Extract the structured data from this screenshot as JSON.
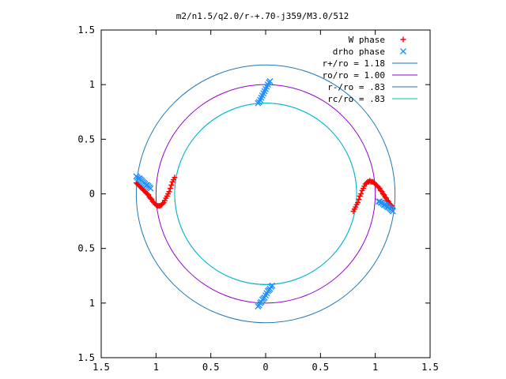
{
  "chart_data": {
    "type": "scatter",
    "title": "m2/n1.5/q2.0/r-+.70-j359/M3.0/512",
    "xlim": [
      -1.5,
      1.5
    ],
    "ylim": [
      -1.5,
      1.5
    ],
    "x_ticks": [
      {
        "value": -1.5,
        "label": "1.5"
      },
      {
        "value": -1.0,
        "label": "1"
      },
      {
        "value": -0.5,
        "label": "0.5"
      },
      {
        "value": 0.0,
        "label": "0"
      },
      {
        "value": 0.5,
        "label": "0.5"
      },
      {
        "value": 1.0,
        "label": "1"
      },
      {
        "value": 1.5,
        "label": "1.5"
      }
    ],
    "y_ticks": [
      {
        "value": 1.5,
        "label": "1.5"
      },
      {
        "value": 1.0,
        "label": "1"
      },
      {
        "value": 0.5,
        "label": "0.5"
      },
      {
        "value": 0.0,
        "label": "0"
      },
      {
        "value": -0.5,
        "label": "0.5"
      },
      {
        "value": -1.0,
        "label": "1"
      },
      {
        "value": -1.5,
        "label": "1.5"
      }
    ],
    "grid": false,
    "legend_position": "top-right",
    "circles": [
      {
        "name": "r+/ro = 1.18",
        "radius": 1.18,
        "color": "#1f77b4"
      },
      {
        "name": "ro/ro = 1.00",
        "radius": 1.0,
        "color": "#9400d3"
      },
      {
        "name": "r-/ro = .83",
        "radius": 0.83,
        "color": "#1f77b4"
      },
      {
        "name": "rc/ro = .83",
        "radius": 0.83,
        "color": "#00c0d0"
      }
    ],
    "series": [
      {
        "name": "W phase",
        "marker": "plus",
        "color": "#ff0000",
        "points": [
          [
            -1.18,
            0.1
          ],
          [
            -1.17,
            0.09
          ],
          [
            -1.16,
            0.08
          ],
          [
            -1.15,
            0.07
          ],
          [
            -1.14,
            0.06
          ],
          [
            -1.13,
            0.05
          ],
          [
            -1.12,
            0.04
          ],
          [
            -1.11,
            0.03
          ],
          [
            -1.1,
            0.02
          ],
          [
            -1.09,
            0.01
          ],
          [
            -1.08,
            0.0
          ],
          [
            -1.07,
            -0.01
          ],
          [
            -1.06,
            -0.03
          ],
          [
            -1.05,
            -0.04
          ],
          [
            -1.04,
            -0.05
          ],
          [
            -1.03,
            -0.07
          ],
          [
            -1.02,
            -0.08
          ],
          [
            -1.01,
            -0.09
          ],
          [
            -1.0,
            -0.1
          ],
          [
            -0.99,
            -0.11
          ],
          [
            -0.98,
            -0.11
          ],
          [
            -0.97,
            -0.11
          ],
          [
            -0.96,
            -0.11
          ],
          [
            -0.95,
            -0.1
          ],
          [
            -0.94,
            -0.09
          ],
          [
            -0.93,
            -0.08
          ],
          [
            -0.92,
            -0.06
          ],
          [
            -0.91,
            -0.04
          ],
          [
            -0.9,
            -0.02
          ],
          [
            -0.89,
            0.0
          ],
          [
            -0.88,
            0.02
          ],
          [
            -0.87,
            0.05
          ],
          [
            -0.86,
            0.08
          ],
          [
            -0.85,
            0.11
          ],
          [
            -0.84,
            0.13
          ],
          [
            -0.83,
            0.15
          ],
          [
            0.8,
            -0.16
          ],
          [
            0.81,
            -0.14
          ],
          [
            0.82,
            -0.12
          ],
          [
            0.83,
            -0.1
          ],
          [
            0.84,
            -0.08
          ],
          [
            0.85,
            -0.05
          ],
          [
            0.86,
            -0.02
          ],
          [
            0.87,
            0.0
          ],
          [
            0.88,
            0.03
          ],
          [
            0.89,
            0.05
          ],
          [
            0.9,
            0.07
          ],
          [
            0.91,
            0.09
          ],
          [
            0.92,
            0.1
          ],
          [
            0.93,
            0.11
          ],
          [
            0.94,
            0.11
          ],
          [
            0.95,
            0.12
          ],
          [
            0.96,
            0.11
          ],
          [
            0.97,
            0.11
          ],
          [
            0.98,
            0.11
          ],
          [
            0.99,
            0.1
          ],
          [
            1.0,
            0.09
          ],
          [
            1.01,
            0.08
          ],
          [
            1.02,
            0.07
          ],
          [
            1.03,
            0.06
          ],
          [
            1.04,
            0.05
          ],
          [
            1.05,
            0.03
          ],
          [
            1.06,
            0.02
          ],
          [
            1.07,
            0.0
          ],
          [
            1.08,
            -0.01
          ],
          [
            1.09,
            -0.03
          ],
          [
            1.1,
            -0.04
          ],
          [
            1.11,
            -0.06
          ],
          [
            1.12,
            -0.07
          ],
          [
            1.13,
            -0.09
          ],
          [
            1.14,
            -0.1
          ],
          [
            1.15,
            -0.11
          ],
          [
            1.16,
            -0.13
          ]
        ]
      },
      {
        "name": "drho phase",
        "marker": "x",
        "color": "#1e90ff",
        "points": [
          [
            -1.18,
            0.16
          ],
          [
            -1.17,
            0.15
          ],
          [
            -1.16,
            0.14
          ],
          [
            -1.15,
            0.14
          ],
          [
            -1.14,
            0.13
          ],
          [
            -1.13,
            0.12
          ],
          [
            -1.12,
            0.11
          ],
          [
            -1.11,
            0.1
          ],
          [
            -1.1,
            0.09
          ],
          [
            -1.09,
            0.08
          ],
          [
            -1.08,
            0.08
          ],
          [
            -1.07,
            0.07
          ],
          [
            -1.06,
            0.06
          ],
          [
            -1.05,
            0.05
          ],
          [
            -0.07,
            0.83
          ],
          [
            -0.06,
            0.84
          ],
          [
            -0.05,
            0.86
          ],
          [
            -0.04,
            0.88
          ],
          [
            -0.03,
            0.9
          ],
          [
            -0.02,
            0.92
          ],
          [
            -0.01,
            0.94
          ],
          [
            0.0,
            0.96
          ],
          [
            0.01,
            0.98
          ],
          [
            0.02,
            1.0
          ],
          [
            0.03,
            1.02
          ],
          [
            0.04,
            1.03
          ],
          [
            0.06,
            -0.84
          ],
          [
            0.05,
            -0.85
          ],
          [
            0.04,
            -0.87
          ],
          [
            0.03,
            -0.88
          ],
          [
            0.02,
            -0.89
          ],
          [
            0.01,
            -0.91
          ],
          [
            0.0,
            -0.93
          ],
          [
            -0.01,
            -0.95
          ],
          [
            -0.02,
            -0.96
          ],
          [
            -0.03,
            -0.97
          ],
          [
            -0.04,
            -0.99
          ],
          [
            -0.05,
            -1.0
          ],
          [
            -0.06,
            -1.02
          ],
          [
            -0.07,
            -1.03
          ],
          [
            1.03,
            -0.07
          ],
          [
            1.04,
            -0.07
          ],
          [
            1.05,
            -0.08
          ],
          [
            1.06,
            -0.08
          ],
          [
            1.07,
            -0.09
          ],
          [
            1.08,
            -0.1
          ],
          [
            1.09,
            -0.1
          ],
          [
            1.1,
            -0.11
          ],
          [
            1.11,
            -0.12
          ],
          [
            1.12,
            -0.12
          ],
          [
            1.13,
            -0.13
          ],
          [
            1.14,
            -0.14
          ],
          [
            1.15,
            -0.15
          ],
          [
            1.16,
            -0.16
          ]
        ]
      }
    ]
  }
}
